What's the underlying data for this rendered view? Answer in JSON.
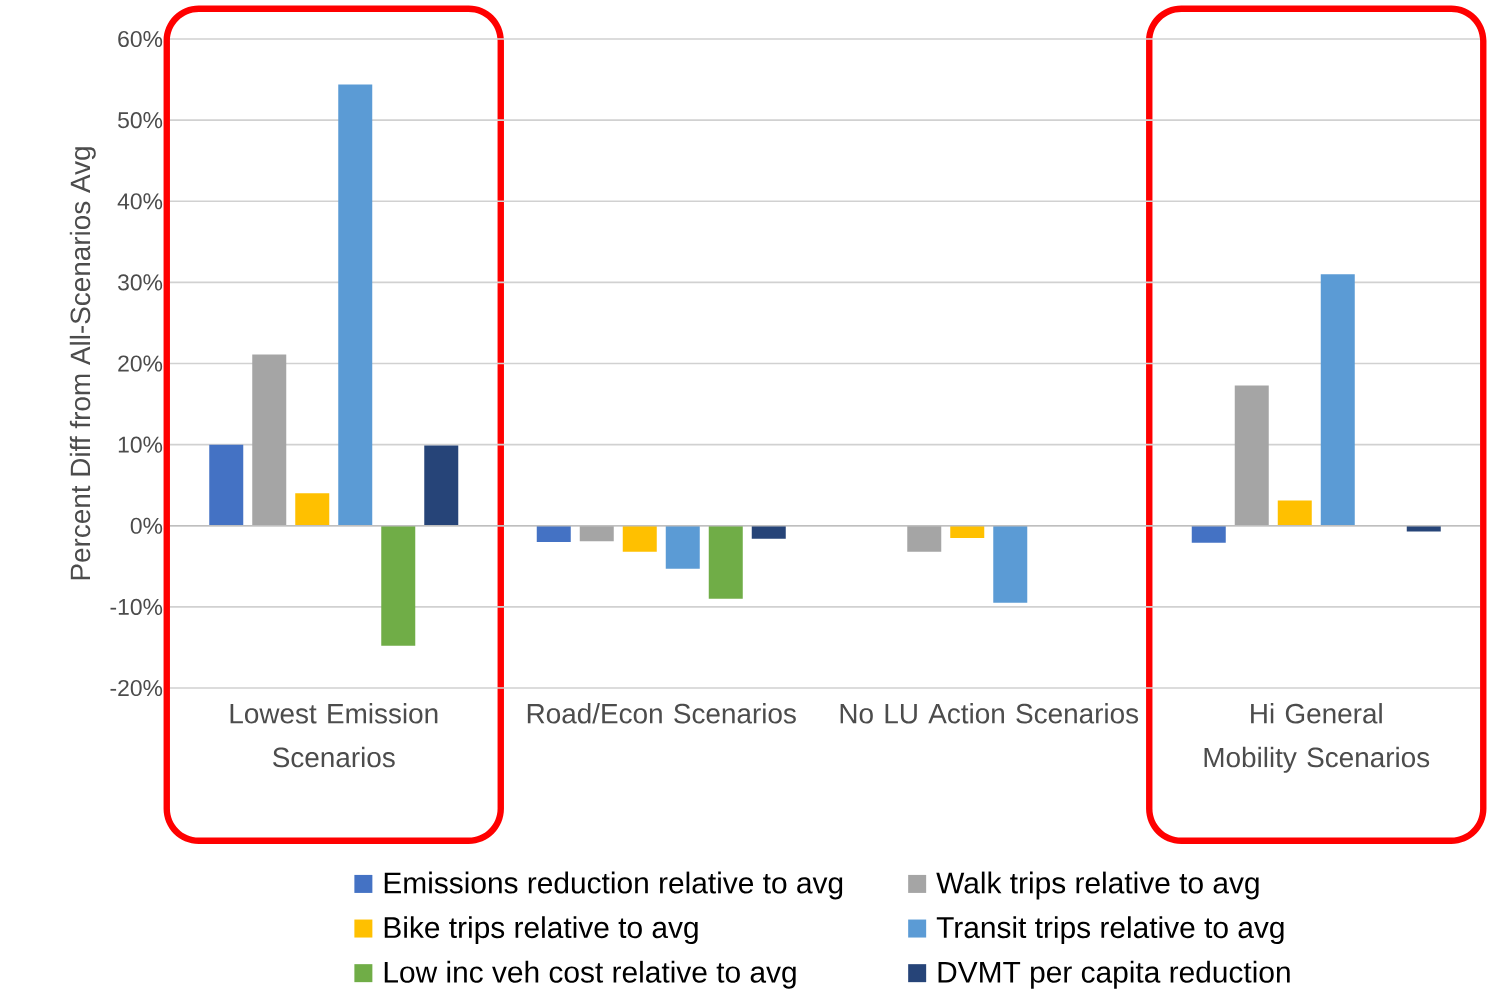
{
  "chart_data": {
    "type": "bar",
    "ylabel": "Percent Diff from All-Scenarios Avg",
    "categories": [
      "Lowest Emission Scenarios",
      "Road/Econ Scenarios",
      "No LU Action Scenarios",
      "Hi General Mobility Scenarios"
    ],
    "series": [
      {
        "name": "Emissions reduction relative to avg",
        "color": "#4472c4",
        "values": [
          10.0,
          -2.0,
          null,
          -2.1
        ]
      },
      {
        "name": "Walk trips relative to avg",
        "color": "#a5a5a5",
        "values": [
          21.1,
          -1.9,
          -3.2,
          17.3
        ]
      },
      {
        "name": "Bike trips relative to avg",
        "color": "#ffc000",
        "values": [
          4.0,
          -3.2,
          -1.5,
          3.1
        ]
      },
      {
        "name": "Transit trips relative to avg",
        "color": "#5b9bd5",
        "values": [
          54.4,
          -5.3,
          -9.5,
          31.0
        ]
      },
      {
        "name": "Low inc veh cost relative to avg",
        "color": "#70ad47",
        "values": [
          -14.8,
          -9.0,
          null,
          null
        ]
      },
      {
        "name": "DVMT per capita reduction",
        "color": "#264478",
        "values": [
          9.9,
          -1.6,
          null,
          -0.7
        ]
      }
    ],
    "ylim": [
      -20,
      60
    ],
    "yticks": [
      {
        "value": -20,
        "label": "-20%"
      },
      {
        "value": -10,
        "label": "-10%"
      },
      {
        "value": 0,
        "label": "0%"
      },
      {
        "value": 10,
        "label": "10%"
      },
      {
        "value": 20,
        "label": "20%"
      },
      {
        "value": 30,
        "label": "30%"
      },
      {
        "value": 40,
        "label": "40%"
      },
      {
        "value": 50,
        "label": "50%"
      },
      {
        "value": 60,
        "label": "60%"
      }
    ],
    "grid": "y",
    "legend": "bottom"
  }
}
